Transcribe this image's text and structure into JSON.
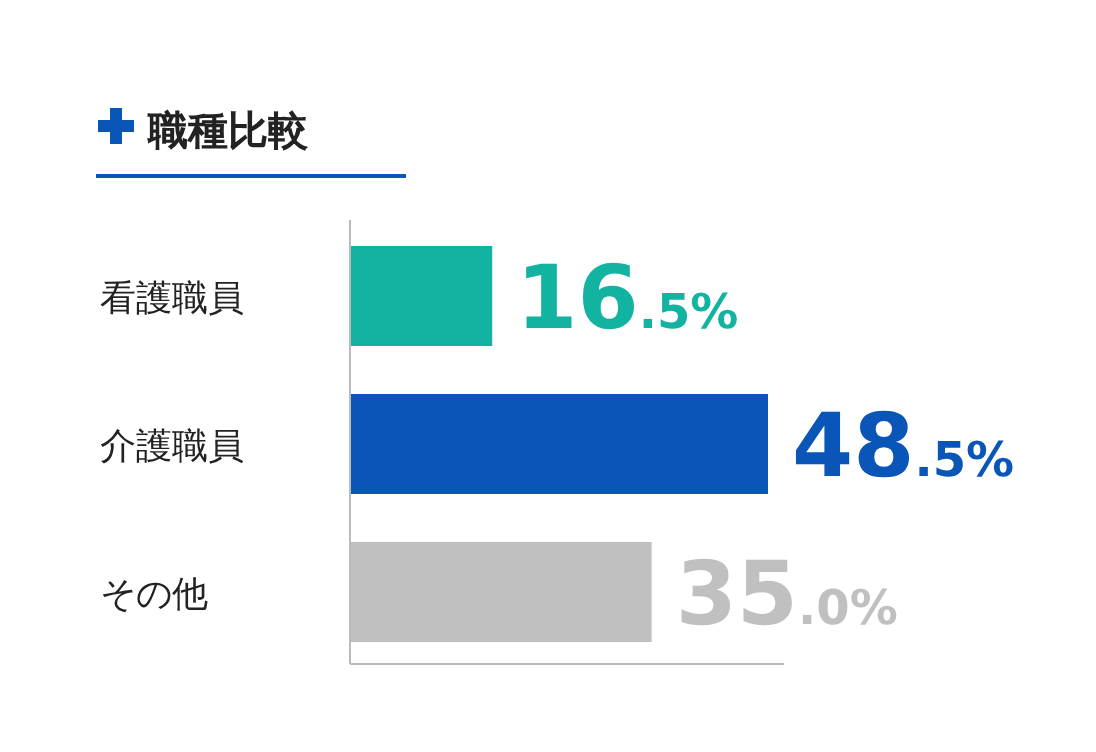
{
  "chart_data": {
    "type": "bar",
    "orientation": "horizontal",
    "title": "職種比較",
    "categories": [
      "看護職員",
      "介護職員",
      "その他"
    ],
    "values": [
      16.5,
      48.5,
      35.0
    ],
    "colors": [
      "#12b3a0",
      "#0a56b8",
      "#c0c0c0"
    ],
    "value_labels": [
      "16.5%",
      "48.5%",
      "35.0%"
    ]
  }
}
